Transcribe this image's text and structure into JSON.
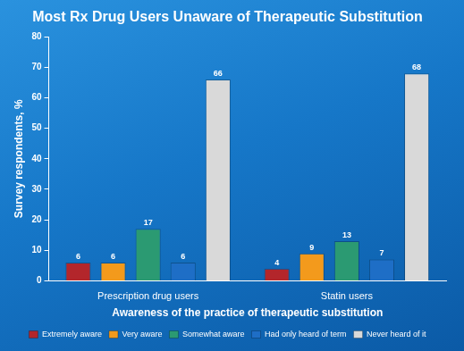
{
  "chart_data": {
    "type": "bar",
    "title": "Most Rx Drug Users Unaware of Therapeutic Substitution",
    "x_label": "Awareness of the practice of therapeutic substitution",
    "y_label": "Survey respondents, %",
    "categories": [
      "Prescription drug users",
      "Statin users"
    ],
    "series": [
      {
        "name": "Extremely aware",
        "color": "#b3262b",
        "values": [
          6,
          4
        ]
      },
      {
        "name": "Very aware",
        "color": "#f39a1c",
        "values": [
          6,
          9
        ]
      },
      {
        "name": "Somewhat aware",
        "color": "#2b9a72",
        "values": [
          17,
          13
        ]
      },
      {
        "name": "Had only heard of term",
        "color": "#1e6ec6",
        "values": [
          6,
          7
        ]
      },
      {
        "name": "Never heard of it",
        "color": "#d9d9d9",
        "values": [
          66,
          68
        ]
      }
    ],
    "ylim": [
      0,
      80
    ],
    "yticks": [
      0,
      10,
      20,
      30,
      40,
      50,
      60,
      70,
      80
    ],
    "grid": false,
    "legend": "bottom",
    "data_labels": true
  }
}
